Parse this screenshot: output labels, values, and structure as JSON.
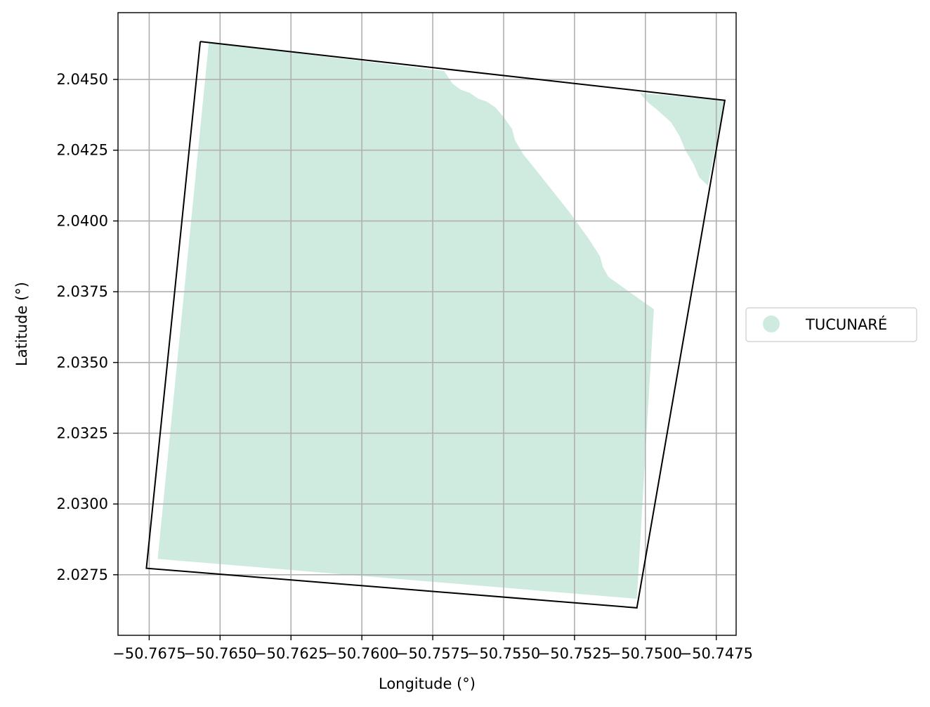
{
  "chart_data": {
    "type": "map",
    "title": "",
    "xlabel": "Longitude (°)",
    "ylabel": "Latitude (°)",
    "xlim": [
      -50.7686,
      -50.7468
    ],
    "ylim": [
      2.02536,
      2.04736
    ],
    "grid": true,
    "grid_color": "#b0b0b0",
    "xticks": [
      {
        "value": -50.7675,
        "label": "−50.7675"
      },
      {
        "value": -50.765,
        "label": "−50.7650"
      },
      {
        "value": -50.7625,
        "label": "−50.7625"
      },
      {
        "value": -50.76,
        "label": "−50.7600"
      },
      {
        "value": -50.7575,
        "label": "−50.7575"
      },
      {
        "value": -50.755,
        "label": "−50.7550"
      },
      {
        "value": -50.7525,
        "label": "−50.7525"
      },
      {
        "value": -50.75,
        "label": "−50.7500"
      },
      {
        "value": -50.7475,
        "label": "−50.7475"
      }
    ],
    "yticks": [
      {
        "value": 2.0275,
        "label": "2.0275"
      },
      {
        "value": 2.03,
        "label": "2.0300"
      },
      {
        "value": 2.0325,
        "label": "2.0325"
      },
      {
        "value": 2.035,
        "label": "2.0350"
      },
      {
        "value": 2.0375,
        "label": "2.0375"
      },
      {
        "value": 2.04,
        "label": "2.0400"
      },
      {
        "value": 2.0425,
        "label": "2.0425"
      },
      {
        "value": 2.045,
        "label": "2.0450"
      }
    ],
    "outline": {
      "color": "#000000",
      "points": [
        [
          -50.7657,
          2.04634
        ],
        [
          -50.7472,
          2.04426
        ],
        [
          -50.7503,
          2.02633
        ],
        [
          -50.7676,
          2.02773
        ],
        [
          -50.7657,
          2.04634
        ]
      ]
    },
    "fill_regions": [
      {
        "name": "TUCUNARÉ",
        "color": "#cfebdf",
        "points": [
          [
            -50.7654,
            2.0463
          ],
          [
            -50.7571,
            2.0453
          ],
          [
            -50.7568,
            2.04485
          ],
          [
            -50.7565,
            2.04463
          ],
          [
            -50.7562,
            2.04453
          ],
          [
            -50.7559,
            2.04432
          ],
          [
            -50.7556,
            2.04422
          ],
          [
            -50.7553,
            2.04402
          ],
          [
            -50.755,
            2.04367
          ],
          [
            -50.7547,
            2.04325
          ],
          [
            -50.7546,
            2.04285
          ],
          [
            -50.7543,
            2.04235
          ],
          [
            -50.7537,
            2.0416
          ],
          [
            -50.7527,
            2.04034
          ],
          [
            -50.752,
            2.03937
          ],
          [
            -50.7516,
            2.03875
          ],
          [
            -50.7515,
            2.03837
          ],
          [
            -50.7513,
            2.03802
          ],
          [
            -50.7497,
            2.03688
          ],
          [
            -50.7503,
            2.02665
          ],
          [
            -50.7672,
            2.02806
          ]
        ]
      },
      {
        "name": "TUCUNARÉ",
        "color": "#cfebdf",
        "points": [
          [
            -50.7502,
            2.04452
          ],
          [
            -50.7472,
            2.04426
          ],
          [
            -50.7478,
            2.04125
          ],
          [
            -50.7481,
            2.04154
          ],
          [
            -50.7483,
            2.04201
          ],
          [
            -50.7486,
            2.04252
          ],
          [
            -50.7488,
            2.04301
          ],
          [
            -50.7491,
            2.04349
          ],
          [
            -50.7496,
            2.04394
          ],
          [
            -50.7499,
            2.04418
          ]
        ]
      }
    ],
    "legend": {
      "placement": "center-right-outside",
      "entries": [
        {
          "label": "TUCUNARÉ",
          "color": "#cfebdf",
          "marker": "circle"
        }
      ]
    }
  }
}
